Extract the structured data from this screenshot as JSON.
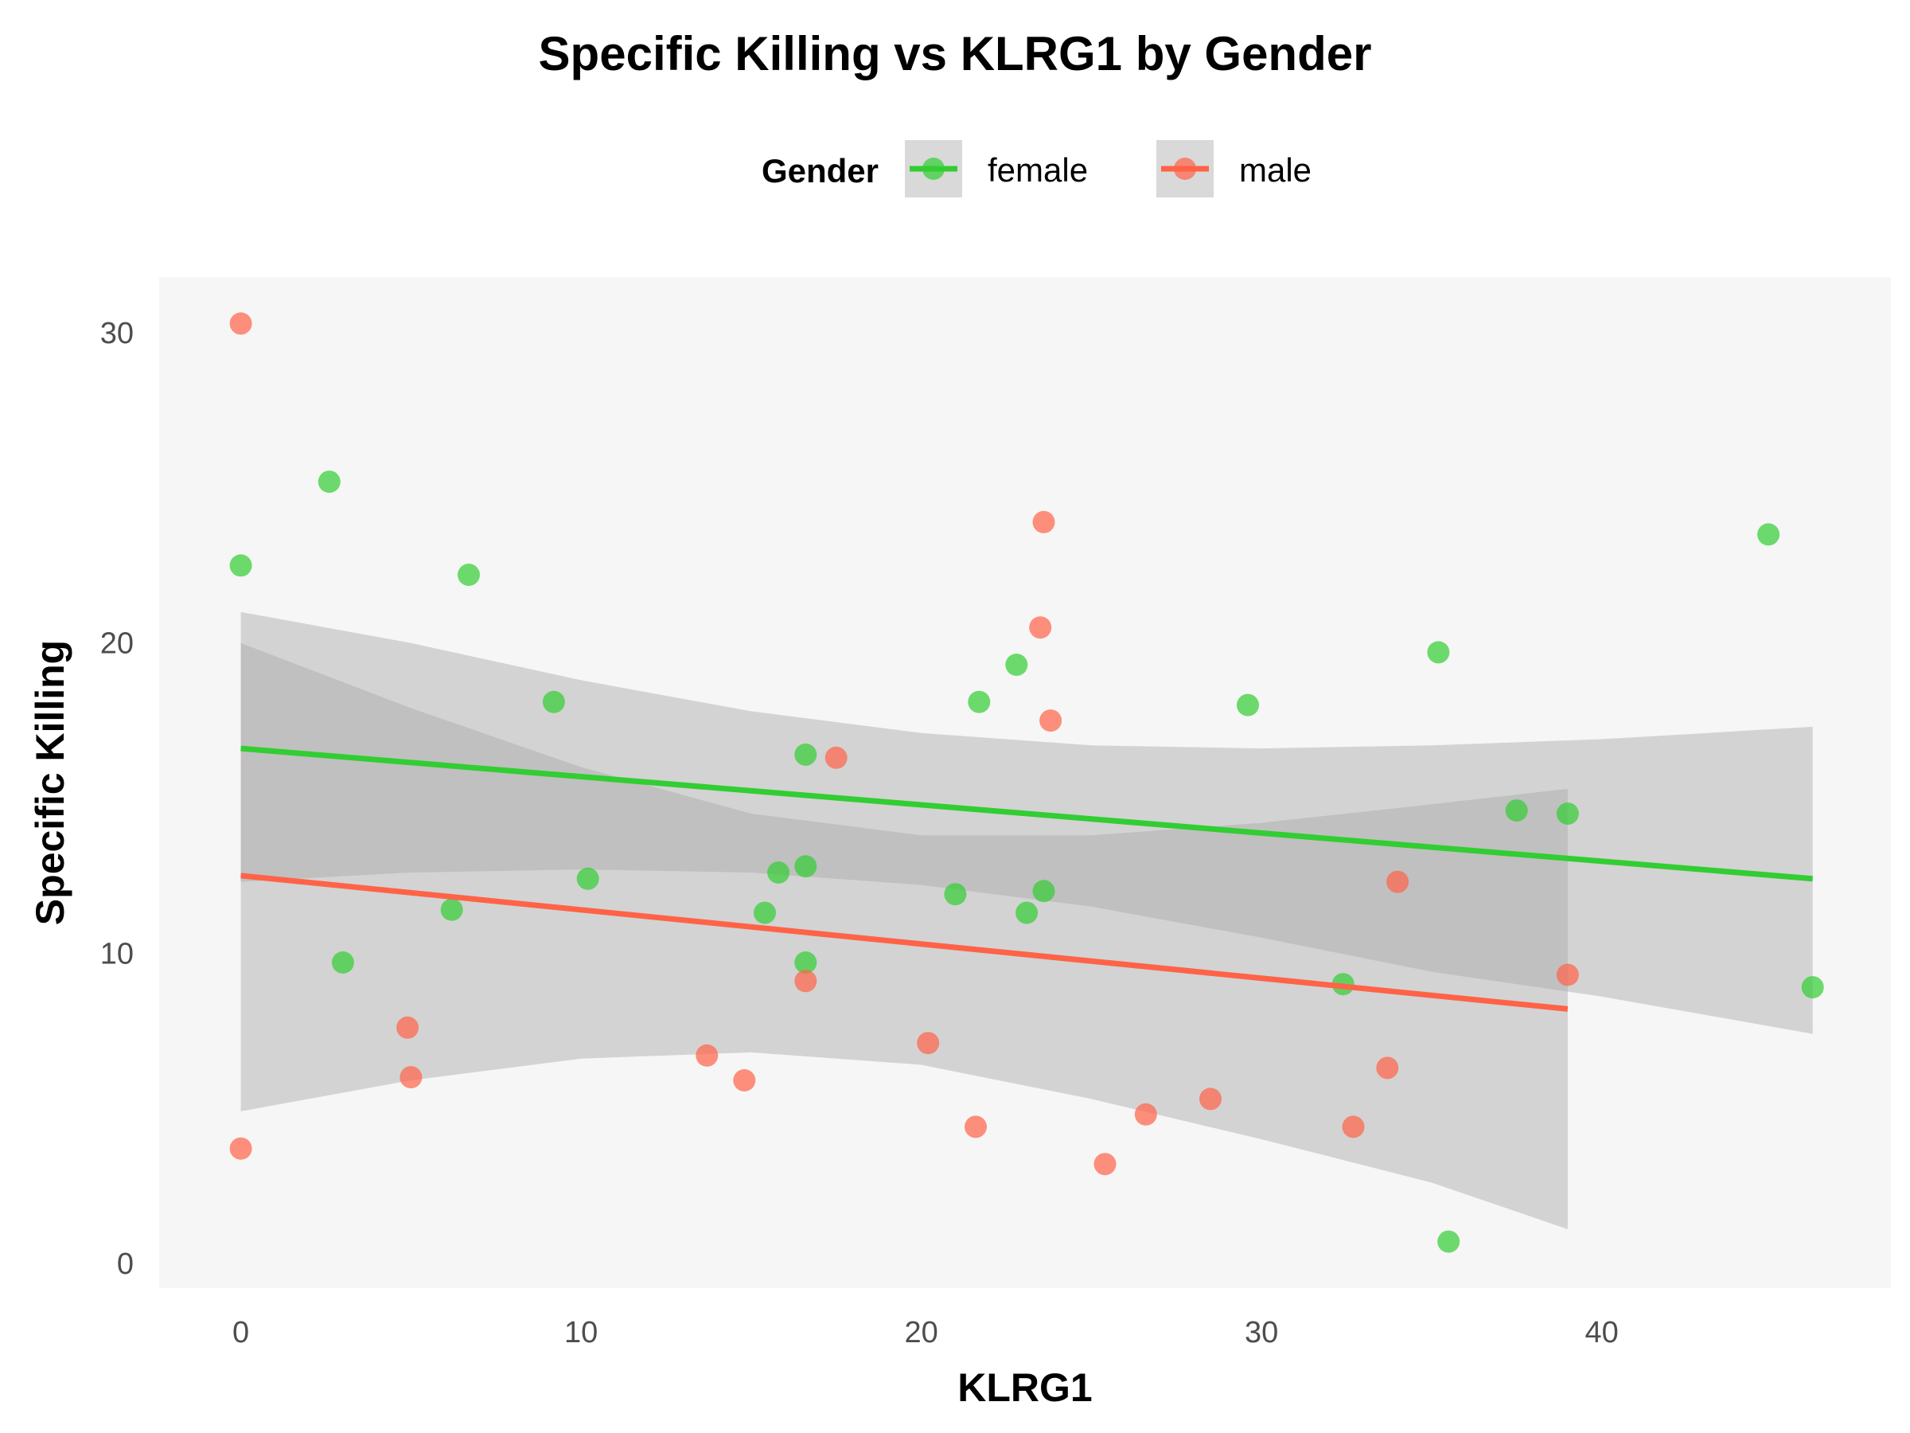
{
  "chart_data": {
    "type": "scatter",
    "title": "Specific Killing vs KLRG1 by Gender",
    "xlabel": "KLRG1",
    "ylabel": "Specific Killing",
    "xlim": [
      -2.4,
      48.5
    ],
    "ylim": [
      -0.8,
      31.8
    ],
    "x_ticks": [
      "0",
      "10",
      "20",
      "30",
      "40"
    ],
    "y_ticks": [
      "0",
      "10",
      "20",
      "30"
    ],
    "x_tick_values": [
      0,
      10,
      20,
      30,
      40
    ],
    "y_tick_values": [
      0,
      10,
      20,
      30
    ],
    "grid": false,
    "legend": {
      "title": "Gender",
      "position": "top"
    },
    "series": [
      {
        "name": "female",
        "color": "#32CD32",
        "points": [
          [
            0,
            22.5
          ],
          [
            2.6,
            25.2
          ],
          [
            3.0,
            9.7
          ],
          [
            6.2,
            11.4
          ],
          [
            6.7,
            22.2
          ],
          [
            9.2,
            18.1
          ],
          [
            10.2,
            12.4
          ],
          [
            15.4,
            11.3
          ],
          [
            15.8,
            12.6
          ],
          [
            16.6,
            16.4
          ],
          [
            16.6,
            12.8
          ],
          [
            16.6,
            9.7
          ],
          [
            21.0,
            11.9
          ],
          [
            21.7,
            18.1
          ],
          [
            22.8,
            19.3
          ],
          [
            23.1,
            11.3
          ],
          [
            23.6,
            12.0
          ],
          [
            29.6,
            18.0
          ],
          [
            32.4,
            9.0
          ],
          [
            35.2,
            19.7
          ],
          [
            35.5,
            0.7
          ],
          [
            37.5,
            14.6
          ],
          [
            39.0,
            14.5
          ],
          [
            44.9,
            23.5
          ],
          [
            46.2,
            8.9
          ]
        ],
        "fit": {
          "x_start": 0,
          "x_end": 46.2,
          "y_start": 16.6,
          "y_end": 12.4
        },
        "band": [
          [
            0,
            12.3,
            21.0
          ],
          [
            5,
            12.6,
            20.0
          ],
          [
            10,
            12.7,
            18.8
          ],
          [
            15,
            12.6,
            17.8
          ],
          [
            20,
            12.2,
            17.1
          ],
          [
            25,
            11.5,
            16.7
          ],
          [
            30,
            10.5,
            16.6
          ],
          [
            35,
            9.4,
            16.7
          ],
          [
            40,
            8.6,
            16.9
          ],
          [
            46.2,
            7.4,
            17.3
          ]
        ]
      },
      {
        "name": "male",
        "color": "#FF6347",
        "points": [
          [
            0,
            30.3
          ],
          [
            0,
            3.7
          ],
          [
            4.9,
            7.6
          ],
          [
            5.0,
            6.0
          ],
          [
            13.7,
            6.7
          ],
          [
            14.8,
            5.9
          ],
          [
            16.6,
            9.1
          ],
          [
            17.5,
            16.3
          ],
          [
            20.2,
            7.1
          ],
          [
            21.6,
            4.4
          ],
          [
            23.5,
            20.5
          ],
          [
            23.6,
            23.9
          ],
          [
            23.8,
            17.5
          ],
          [
            25.4,
            3.2
          ],
          [
            26.6,
            4.8
          ],
          [
            28.5,
            5.3
          ],
          [
            32.7,
            4.4
          ],
          [
            33.7,
            6.3
          ],
          [
            34.0,
            12.3
          ],
          [
            39.0,
            9.3
          ]
        ],
        "fit": {
          "x_start": 0,
          "x_end": 39.0,
          "y_start": 12.5,
          "y_end": 8.2
        },
        "band": [
          [
            0,
            4.9,
            20.0
          ],
          [
            5,
            5.9,
            17.9
          ],
          [
            10,
            6.6,
            16.0
          ],
          [
            15,
            6.8,
            14.5
          ],
          [
            20,
            6.4,
            13.8
          ],
          [
            25,
            5.3,
            13.8
          ],
          [
            30,
            4.0,
            14.2
          ],
          [
            35,
            2.6,
            14.8
          ],
          [
            39.0,
            1.1,
            15.3
          ]
        ]
      }
    ]
  }
}
